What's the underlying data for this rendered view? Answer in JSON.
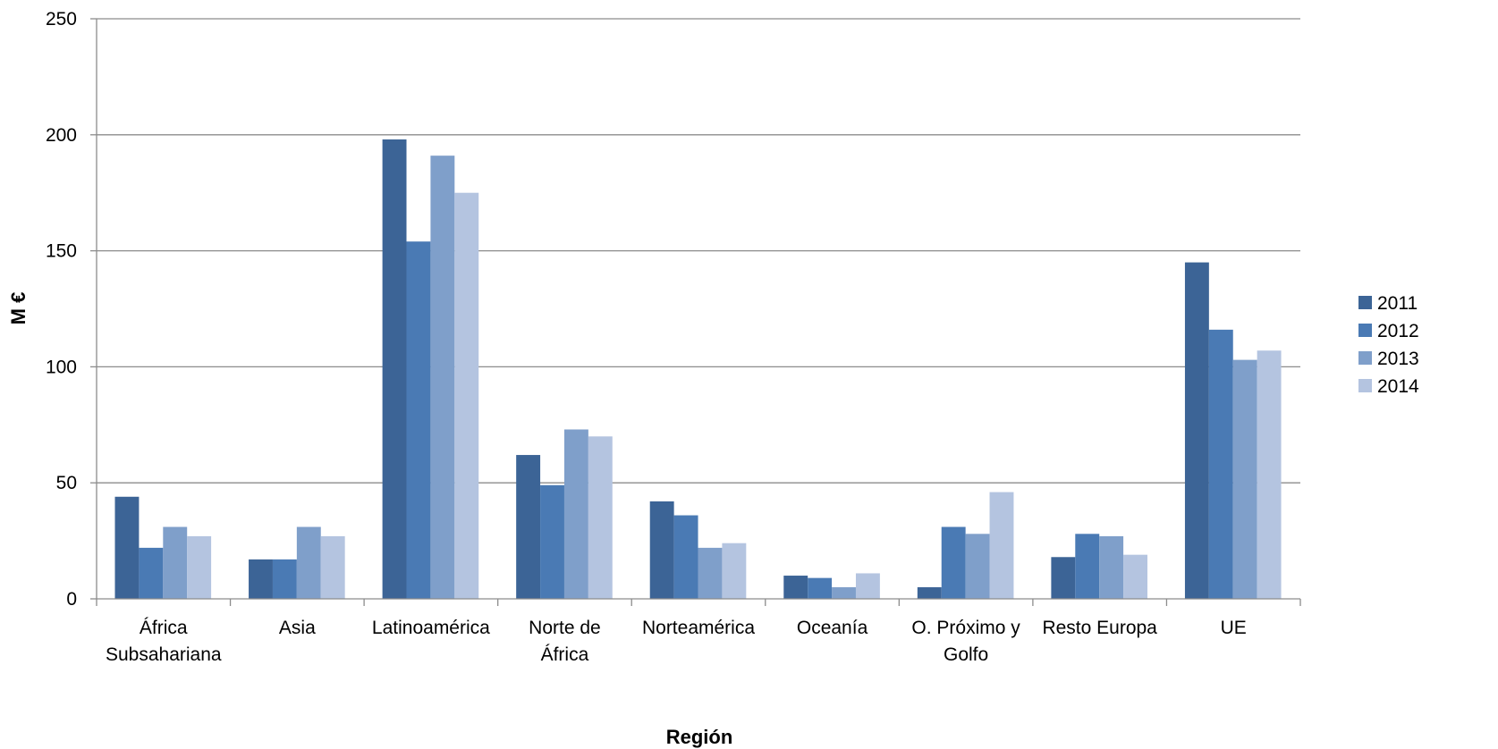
{
  "chart_data": {
    "type": "bar",
    "xlabel": "Región",
    "ylabel": "M €",
    "ylim": [
      0,
      250
    ],
    "yticks": [
      "0",
      "50",
      "100",
      "150",
      "200",
      "250"
    ],
    "grid": true,
    "legend_position": "right",
    "categories": [
      [
        "África",
        "Subsahariana"
      ],
      [
        "Asia"
      ],
      [
        "Latinoamérica"
      ],
      [
        "Norte de",
        "África"
      ],
      [
        "Norteamérica"
      ],
      [
        "Oceanía"
      ],
      [
        "O. Próximo y",
        "Golfo"
      ],
      [
        "Resto Europa"
      ],
      [
        "UE"
      ]
    ],
    "series": [
      {
        "name": "2011",
        "color": "#3C6496",
        "values": [
          44,
          17,
          198,
          62,
          42,
          10,
          5,
          18,
          145
        ]
      },
      {
        "name": "2012",
        "color": "#4A7AB4",
        "values": [
          22,
          17,
          154,
          49,
          36,
          9,
          31,
          28,
          116
        ]
      },
      {
        "name": "2013",
        "color": "#7F9FCA",
        "values": [
          31,
          31,
          191,
          73,
          22,
          5,
          28,
          27,
          103
        ]
      },
      {
        "name": "2014",
        "color": "#B4C4E0",
        "values": [
          27,
          27,
          175,
          70,
          24,
          11,
          46,
          19,
          107
        ]
      }
    ]
  }
}
